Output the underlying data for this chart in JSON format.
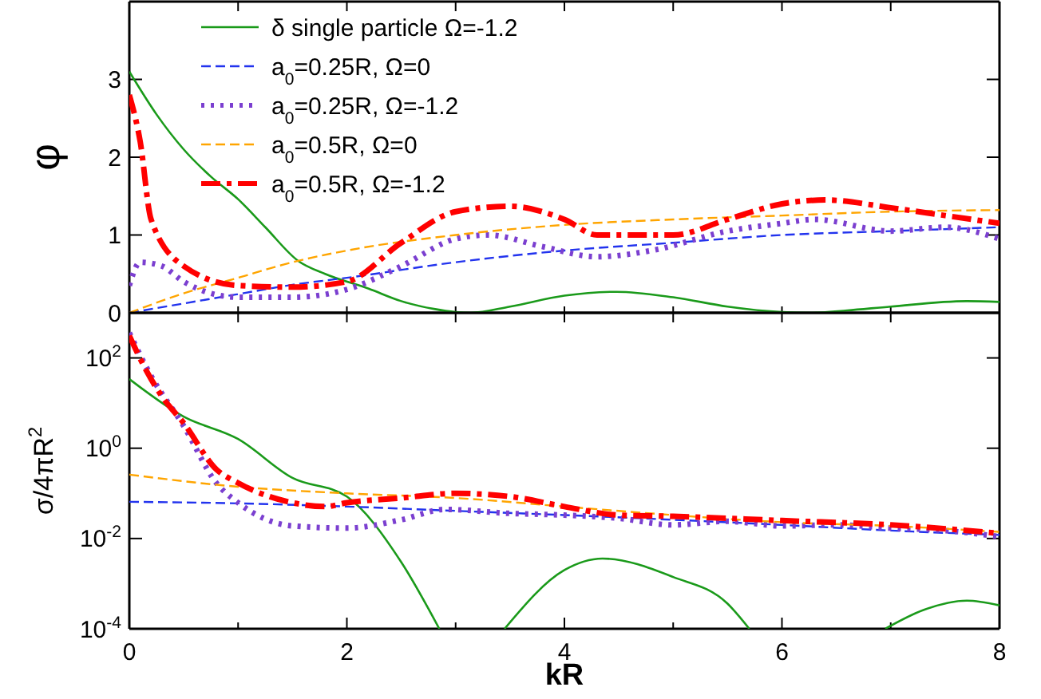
{
  "chart_data": [
    {
      "type": "line",
      "ylabel": "φ",
      "xlim": [
        0,
        8
      ],
      "ylim": [
        0,
        4
      ],
      "xticks": [
        {
          "value": 0,
          "label": null
        },
        {
          "value": 1,
          "label": null
        },
        {
          "value": 2,
          "label": null
        },
        {
          "value": 3,
          "label": null
        },
        {
          "value": 4,
          "label": null
        },
        {
          "value": 5,
          "label": null
        },
        {
          "value": 6,
          "label": null
        },
        {
          "value": 7,
          "label": null
        },
        {
          "value": 8,
          "label": null
        }
      ],
      "yticks": [
        0,
        1,
        2,
        3
      ],
      "tick_labels": "y",
      "legend": "top left",
      "grid": false,
      "series": [
        {
          "name": "δ single particle Ω=-1.2",
          "color": "#1a9a1a",
          "line_style": "solid",
          "x": [
            0,
            0.25,
            0.5,
            0.75,
            1,
            1.25,
            1.55,
            1.8,
            2.2,
            2.5,
            2.8,
            3,
            3.14,
            3.5,
            4,
            4.48,
            5,
            5.5,
            6,
            6.28,
            6.6,
            7,
            7.7,
            8
          ],
          "values": [
            3.1,
            2.55,
            2.1,
            1.75,
            1.46,
            1.1,
            0.67,
            0.5,
            0.31,
            0.15,
            0.05,
            0.01,
            0,
            0.08,
            0.22,
            0.27,
            0.2,
            0.08,
            0.01,
            0,
            0.03,
            0.08,
            0.15,
            0.14
          ]
        },
        {
          "name": "a$_{0}$=0.25R, Ω=0",
          "color": "#2233ee",
          "line_style": "dashed",
          "x": [
            0,
            0.5,
            1,
            1.5,
            2,
            3,
            4,
            5,
            6,
            7,
            8
          ],
          "values": [
            0,
            0.12,
            0.24,
            0.36,
            0.45,
            0.65,
            0.8,
            0.9,
            1.0,
            1.05,
            1.1
          ]
        },
        {
          "name": "a$_{0}$=0.25R, Ω=-1.2",
          "color": "#7b3fd0",
          "line_style": "dotted",
          "x": [
            0,
            0.1,
            0.3,
            0.5,
            1,
            1.5,
            2,
            2.5,
            3,
            3.3,
            3.8,
            4.3,
            4.8,
            5.5,
            6,
            6.3,
            7,
            7.5,
            8
          ],
          "values": [
            0.35,
            0.65,
            0.6,
            0.4,
            0.2,
            0.2,
            0.3,
            0.6,
            0.95,
            1.0,
            0.85,
            0.72,
            0.8,
            1.05,
            1.15,
            1.2,
            1.05,
            1.1,
            0.95
          ]
        },
        {
          "name": "a$_{0}$=0.5R, Ω=0",
          "color": "#ffa500",
          "line_style": "dashed",
          "x": [
            0,
            0.5,
            1,
            1.5,
            2,
            3,
            4,
            5,
            6,
            7,
            8
          ],
          "values": [
            0,
            0.25,
            0.45,
            0.65,
            0.8,
            1.0,
            1.13,
            1.2,
            1.25,
            1.3,
            1.32
          ]
        },
        {
          "name": "a$_{0}$=0.5R, Ω=-1.2",
          "color": "#ff0000",
          "line_style": "dashdot",
          "x": [
            0,
            0.1,
            0.2,
            0.5,
            1,
            1.5,
            2,
            2.5,
            3,
            3.5,
            4,
            4.3,
            5,
            5.5,
            6,
            6.4,
            7,
            7.5,
            8
          ],
          "values": [
            2.8,
            2.2,
            1.2,
            0.6,
            0.35,
            0.33,
            0.4,
            0.9,
            1.3,
            1.37,
            1.2,
            1.0,
            1.0,
            1.2,
            1.4,
            1.45,
            1.35,
            1.25,
            1.15
          ]
        }
      ]
    },
    {
      "type": "line",
      "xlabel": "kR",
      "ylabel": "σ/4πR$^{2}$",
      "log": "y",
      "xlim": [
        0,
        8
      ],
      "ylim": [
        0.0001,
        1000
      ],
      "xticks": [
        0,
        {
          "value": 1,
          "label": null
        },
        2,
        {
          "value": 3,
          "label": null
        },
        4,
        {
          "value": 5,
          "label": null
        },
        6,
        {
          "value": 7,
          "label": null
        },
        8
      ],
      "yticks": [
        {
          "value": 0.0001,
          "label": "10$^{-4}$"
        },
        {
          "value": 0.01,
          "label": "10$^{-2}$"
        },
        {
          "value": 1,
          "label": "10$^{0}$"
        },
        {
          "value": 100,
          "label": "10$^{2}$"
        }
      ],
      "grid": false,
      "series": [
        {
          "color": "#1a9a1a",
          "line_style": "solid",
          "x": [
            0,
            0.5,
            1,
            1.5,
            2,
            2.5,
            2.85,
            3.1,
            3.45,
            4,
            4.35,
            5,
            5.5,
            5.7,
            6.4,
            6.95,
            7.3,
            7.7,
            8
          ],
          "values": [
            34,
            5,
            1.6,
            0.22,
            0.085,
            0.003,
            0.0001,
            null,
            0.0001,
            0.002,
            0.0036,
            0.0014,
            0.00036,
            0.0001,
            null,
            0.0001,
            0.00026,
            0.00042,
            0.00033
          ]
        },
        {
          "color": "#2233ee",
          "line_style": "dashed",
          "x": [
            0,
            1,
            2,
            3,
            4,
            5,
            6,
            7,
            8
          ],
          "values": [
            0.065,
            0.06,
            0.051,
            0.041,
            0.033,
            0.026,
            0.02,
            0.015,
            0.012
          ]
        },
        {
          "color": "#7b3fd0",
          "line_style": "dotted",
          "x": [
            0,
            0.2,
            0.5,
            0.8,
            1,
            1.5,
            2,
            2.5,
            2.9,
            3.5,
            4,
            4.5,
            5,
            5.5,
            6,
            6.5,
            7,
            7.5,
            8
          ],
          "values": [
            360,
            40,
            3.1,
            0.17,
            0.062,
            0.019,
            0.017,
            0.026,
            0.044,
            0.036,
            0.033,
            0.028,
            0.02,
            0.024,
            0.019,
            0.02,
            0.017,
            0.015,
            0.011
          ]
        },
        {
          "color": "#ffa500",
          "line_style": "dashed",
          "x": [
            0,
            1,
            2,
            3,
            4,
            5,
            6,
            7,
            8
          ],
          "values": [
            0.26,
            0.14,
            0.1,
            0.079,
            0.051,
            0.033,
            0.023,
            0.019,
            0.014
          ]
        },
        {
          "color": "#ff0000",
          "line_style": "dashdot",
          "x": [
            0,
            0.15,
            0.3,
            0.5,
            0.8,
            1,
            1.5,
            1.8,
            2,
            2.5,
            3,
            3.5,
            4,
            4.5,
            5,
            6,
            7,
            8
          ],
          "values": [
            310,
            56,
            14,
            3.6,
            0.34,
            0.17,
            0.062,
            0.051,
            0.062,
            0.079,
            0.1,
            0.085,
            0.051,
            0.033,
            0.031,
            0.025,
            0.02,
            0.013
          ]
        }
      ]
    }
  ]
}
